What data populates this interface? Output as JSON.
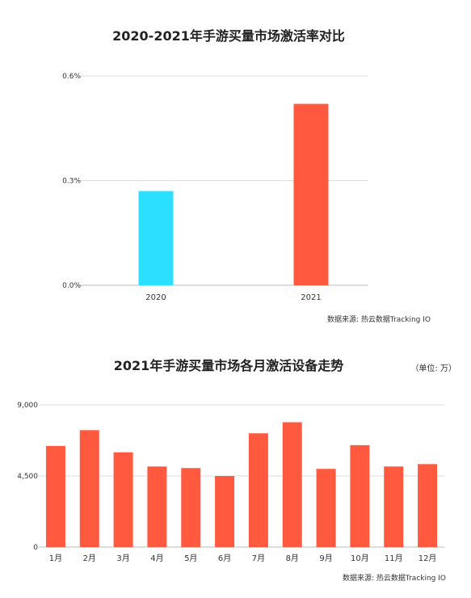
{
  "chart_data": [
    {
      "type": "bar",
      "title": "2020-2021年手游买量市场激活率对比",
      "categories": [
        "2020",
        "2021"
      ],
      "values": [
        0.27,
        0.52
      ],
      "colors": [
        "#2BE0FF",
        "#FF5A40"
      ],
      "ylim": [
        0,
        0.6
      ],
      "yticks": [
        "0.0%",
        "0.3%",
        "0.6%"
      ],
      "ytick_values": [
        0,
        0.3,
        0.6
      ],
      "grid": true,
      "source": "数据来源: 热云数据Tracking IO"
    },
    {
      "type": "bar",
      "title": "2021年手游买量市场各月激活设备走势",
      "unit": "（单位: 万）",
      "categories": [
        "1月",
        "2月",
        "3月",
        "4月",
        "5月",
        "6月",
        "7月",
        "8月",
        "9月",
        "10月",
        "11月",
        "12月"
      ],
      "values": [
        6400,
        7400,
        6000,
        5100,
        5000,
        4500,
        7200,
        7900,
        4950,
        6450,
        5100,
        5250
      ],
      "color": "#FF5A40",
      "ylim": [
        0,
        9000
      ],
      "yticks": [
        "0",
        "4,500",
        "9,000"
      ],
      "ytick_values": [
        0,
        4500,
        9000
      ],
      "grid": true,
      "source": "数据来源: 热云数据Tracking IO"
    }
  ]
}
